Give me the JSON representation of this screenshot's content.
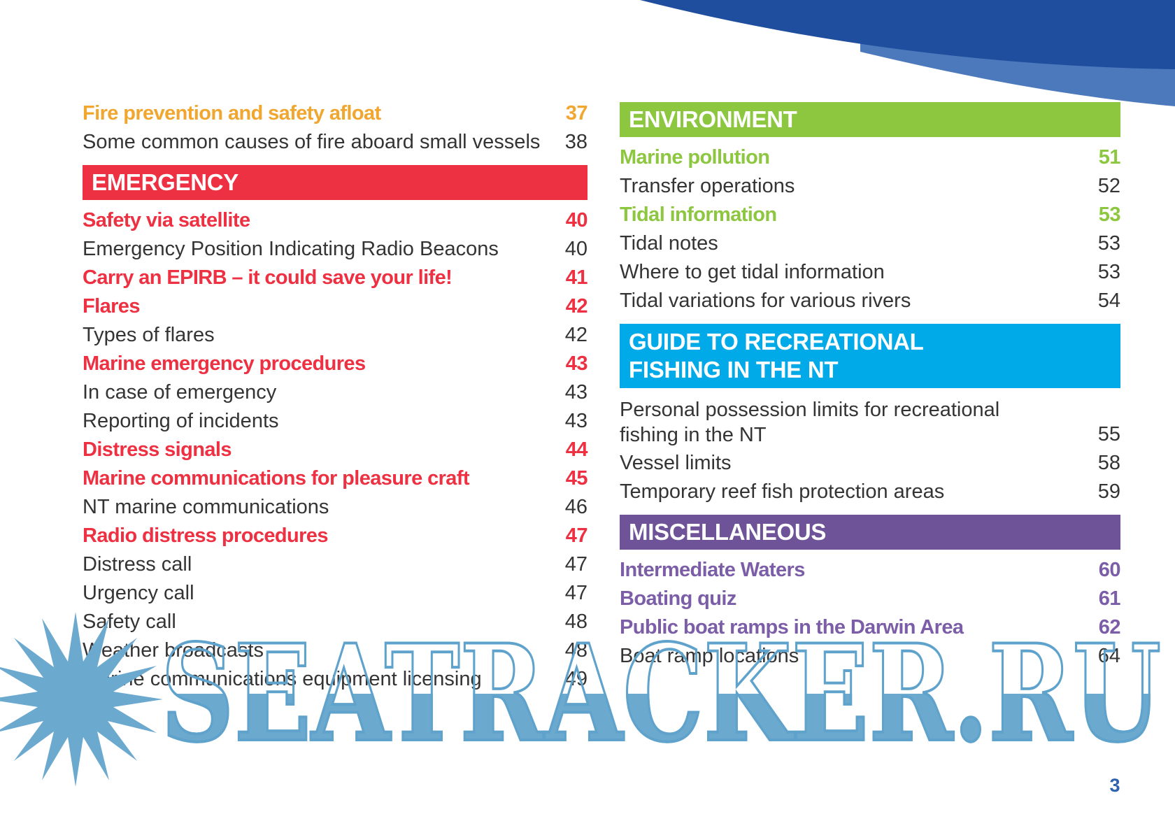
{
  "page_number": "3",
  "watermark": {
    "text": "SEATRACKER.RU"
  },
  "colors": {
    "orange": "#F0A62F",
    "red": "#EE3142",
    "green": "#8DC63F",
    "blue": "#00A9E8",
    "purple": "#6E5398",
    "purpleText": "#7B5EA7",
    "dark": "#343434",
    "banner_text": "#FFFFFF",
    "swoosh_dark": "#1F4E9E",
    "swoosh_light": "#4C79BC",
    "watermark_fill": "#6CA9CF",
    "watermark_outline": "#5FA3CC",
    "page_number_blue": "#2E62AC"
  },
  "columns": [
    {
      "side": "left",
      "rows": [
        {
          "type": "sub",
          "color": "orange",
          "label": "Fire prevention and safety afloat",
          "page": "37"
        },
        {
          "type": "plain",
          "label": "Some common causes of fire aboard small vessels",
          "page": "38"
        },
        {
          "type": "section",
          "color": "red",
          "label": "EMERGENCY"
        },
        {
          "type": "sub",
          "color": "red",
          "label": "Safety via satellite",
          "page": "40"
        },
        {
          "type": "plain",
          "label": "Emergency Position Indicating Radio Beacons",
          "page": "40"
        },
        {
          "type": "sub",
          "color": "red",
          "label": "Carry an EPIRB – it could save your life!",
          "page": "41"
        },
        {
          "type": "sub",
          "color": "red",
          "label": "Flares",
          "page": "42"
        },
        {
          "type": "plain",
          "label": "Types of flares",
          "page": "42"
        },
        {
          "type": "sub",
          "color": "red",
          "label": "Marine emergency procedures",
          "page": "43"
        },
        {
          "type": "plain",
          "label": "In case of emergency",
          "page": "43"
        },
        {
          "type": "plain",
          "label": "Reporting of incidents",
          "page": "43"
        },
        {
          "type": "sub",
          "color": "red",
          "label": "Distress signals",
          "page": "44"
        },
        {
          "type": "sub",
          "color": "red",
          "label": "Marine communications for pleasure craft",
          "page": "45"
        },
        {
          "type": "plain",
          "label": "NT marine communications",
          "page": "46"
        },
        {
          "type": "sub",
          "color": "red",
          "label": "Radio distress procedures",
          "page": "47"
        },
        {
          "type": "plain",
          "label": "Distress call",
          "page": "47"
        },
        {
          "type": "plain",
          "label": "Urgency call",
          "page": "47"
        },
        {
          "type": "plain",
          "label": "Safety call",
          "page": "48"
        },
        {
          "type": "plain",
          "label": "Weather broadcasts",
          "page": "48"
        },
        {
          "type": "plain",
          "label": "Marine communications equipment licensing",
          "page": "49"
        }
      ]
    },
    {
      "side": "right",
      "rows": [
        {
          "type": "section",
          "color": "green",
          "label": "ENVIRONMENT"
        },
        {
          "type": "sub",
          "color": "green",
          "label": "Marine pollution",
          "page": "51"
        },
        {
          "type": "plain",
          "label": "Transfer operations",
          "page": "52"
        },
        {
          "type": "sub",
          "color": "green",
          "label": "Tidal information",
          "page": "53"
        },
        {
          "type": "plain",
          "label": "Tidal notes",
          "page": "53"
        },
        {
          "type": "plain",
          "label": "Where to get tidal information",
          "page": "53"
        },
        {
          "type": "plain",
          "label": "Tidal variations for various rivers",
          "page": "54"
        },
        {
          "type": "section",
          "color": "blue",
          "label": "GUIDE TO RECREATIONAL FISHING IN THE NT",
          "wrap": true
        },
        {
          "type": "plain",
          "label": "Personal possession limits for recreational fishing in the NT",
          "page": "55",
          "wrap": true
        },
        {
          "type": "plain",
          "label": "Vessel limits",
          "page": "58"
        },
        {
          "type": "plain",
          "label": "Temporary reef fish protection areas",
          "page": "59"
        },
        {
          "type": "section",
          "color": "purple",
          "label": "MISCELLANEOUS"
        },
        {
          "type": "sub",
          "color": "purpleText",
          "label": "Intermediate Waters",
          "page": "60"
        },
        {
          "type": "sub",
          "color": "purpleText",
          "label": "Boating quiz",
          "page": "61"
        },
        {
          "type": "sub",
          "color": "purpleText",
          "label": "Public boat ramps in the Darwin Area",
          "page": "62"
        },
        {
          "type": "plain",
          "label": "Boat ramp locations",
          "page": "64"
        }
      ]
    }
  ]
}
